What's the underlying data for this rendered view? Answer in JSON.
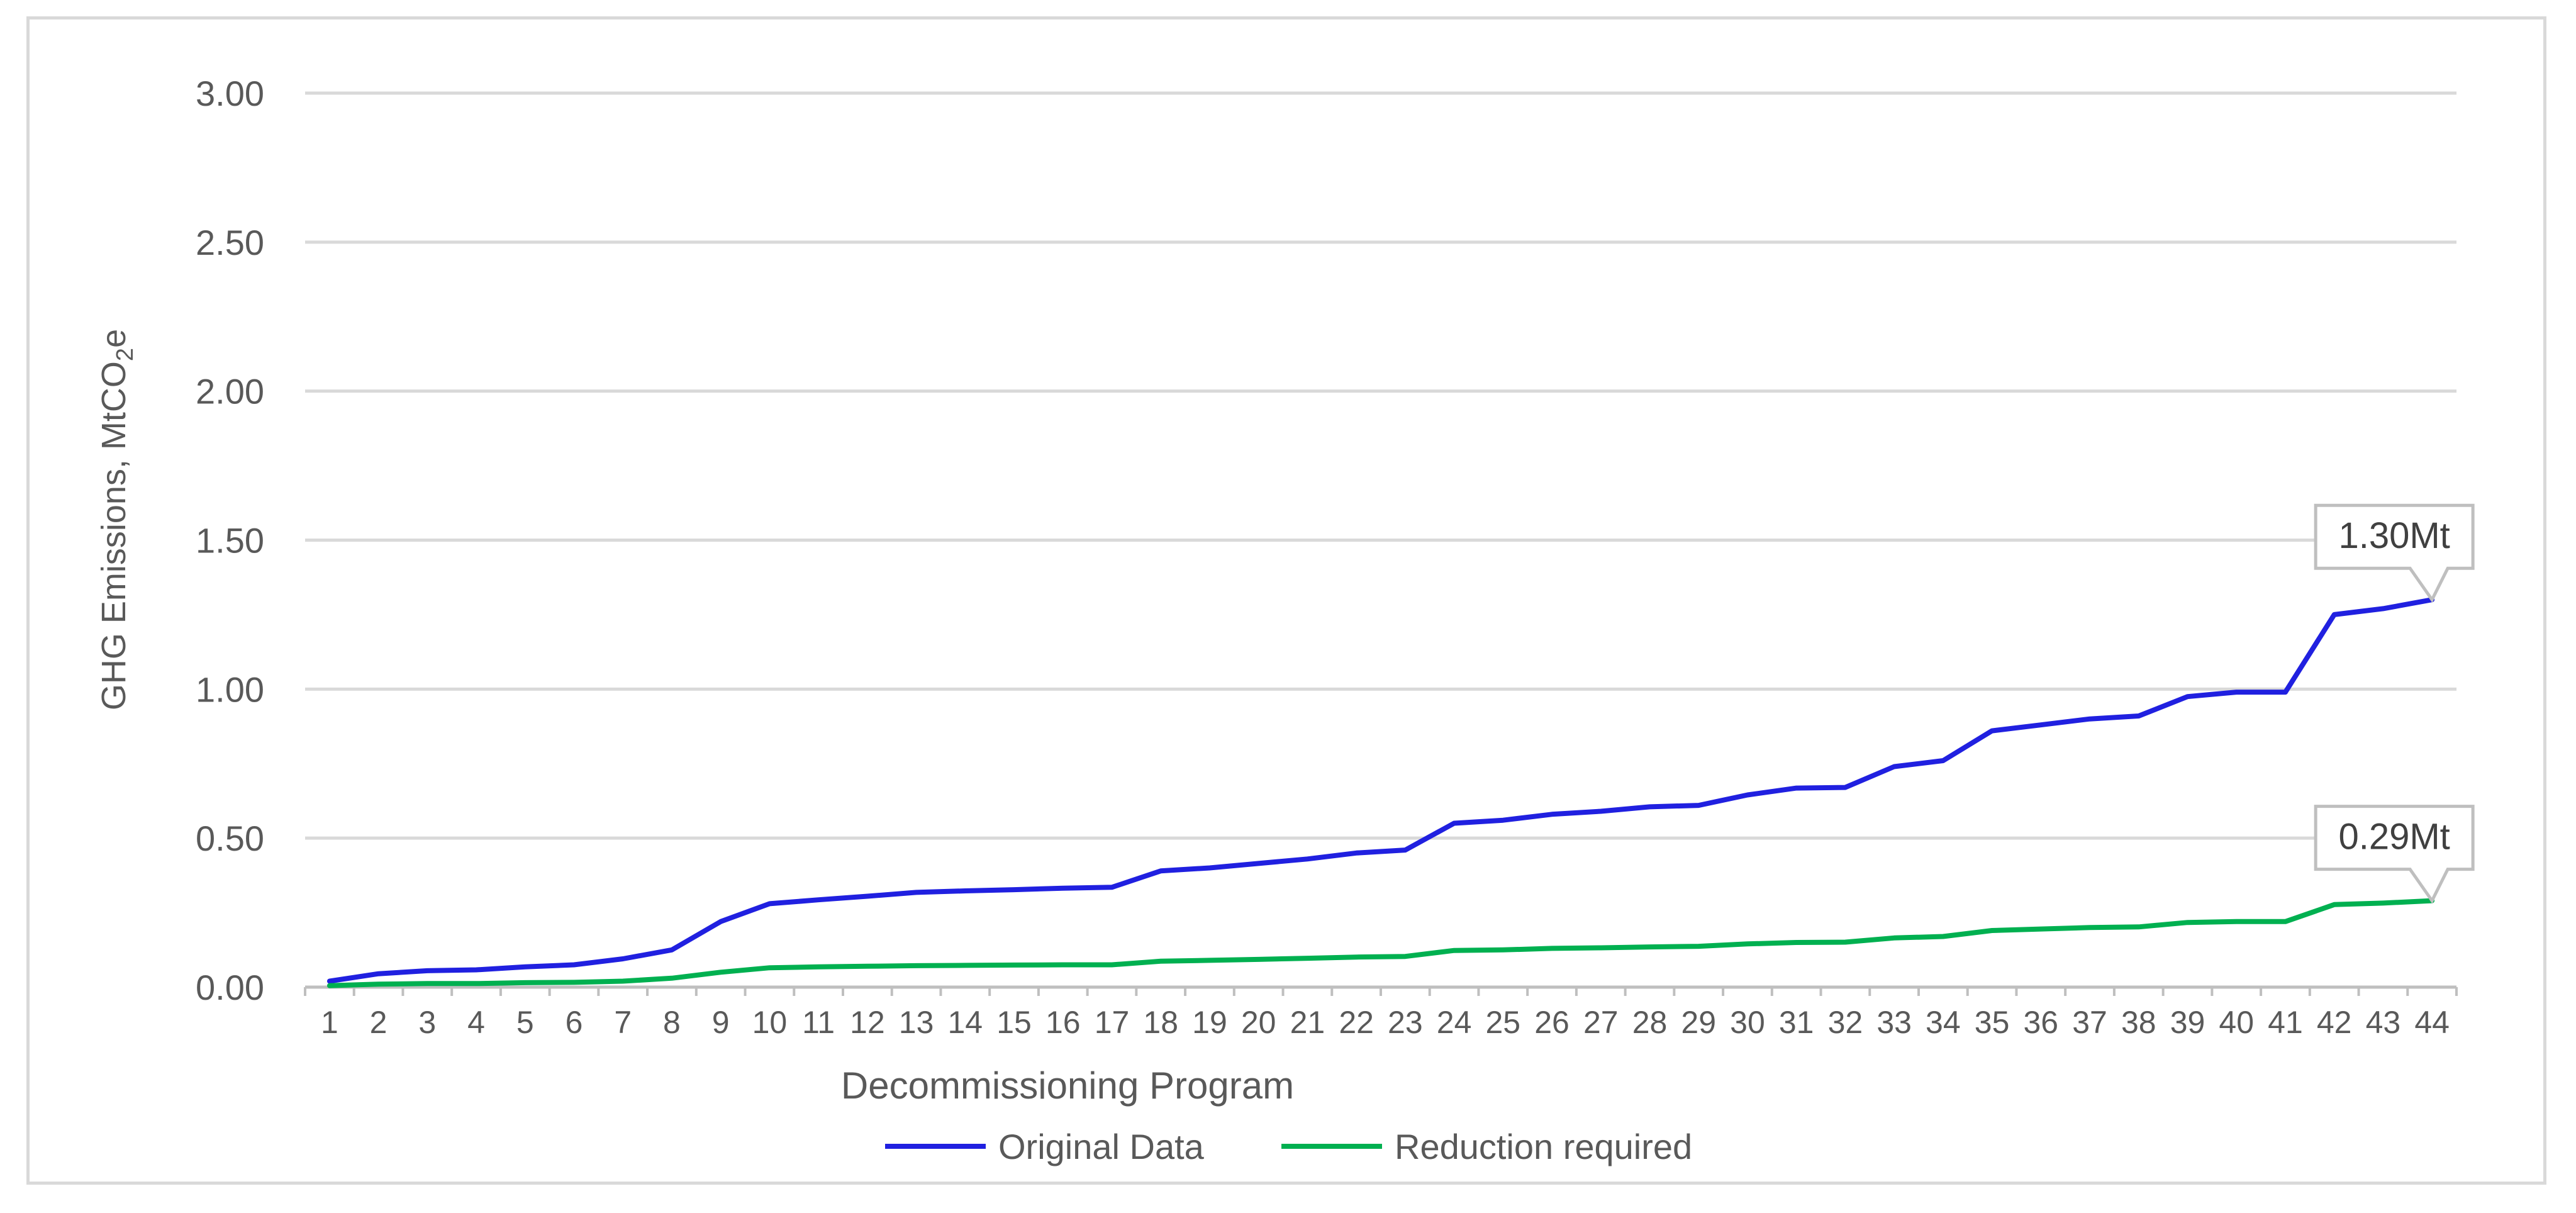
{
  "chart_data": {
    "type": "line",
    "title": "",
    "xlabel": "Decommissioning Program",
    "ylabel": {
      "main": "GHG Emissions, MtCO",
      "subscript": "2",
      "suffix": "e"
    },
    "ylim": [
      0,
      3
    ],
    "y_ticks": [
      "0.00",
      "0.50",
      "1.00",
      "1.50",
      "2.00",
      "2.50",
      "3.00"
    ],
    "grid": true,
    "legend_position": "bottom",
    "categories": [
      "1",
      "2",
      "3",
      "4",
      "5",
      "6",
      "7",
      "8",
      "9",
      "10",
      "11",
      "12",
      "13",
      "14",
      "15",
      "16",
      "17",
      "18",
      "19",
      "20",
      "21",
      "22",
      "23",
      "24",
      "25",
      "26",
      "27",
      "28",
      "29",
      "30",
      "31",
      "32",
      "33",
      "34",
      "35",
      "36",
      "37",
      "38",
      "39",
      "40",
      "41",
      "42",
      "43",
      "44"
    ],
    "series": [
      {
        "name": "Original Data",
        "color": "#2020e0",
        "values": [
          0.02,
          0.045,
          0.055,
          0.058,
          0.068,
          0.075,
          0.095,
          0.125,
          0.22,
          0.28,
          0.293,
          0.305,
          0.318,
          0.323,
          0.327,
          0.332,
          0.335,
          0.39,
          0.4,
          0.415,
          0.43,
          0.45,
          0.46,
          0.55,
          0.56,
          0.58,
          0.59,
          0.605,
          0.61,
          0.645,
          0.668,
          0.67,
          0.74,
          0.76,
          0.86,
          0.88,
          0.9,
          0.91,
          0.975,
          0.99,
          0.99,
          1.25,
          1.27,
          1.3
        ],
        "callout": "1.30Mt"
      },
      {
        "name": "Reduction required",
        "color": "#00b050",
        "values": [
          0.005,
          0.01,
          0.012,
          0.012,
          0.015,
          0.016,
          0.02,
          0.03,
          0.05,
          0.065,
          0.068,
          0.07,
          0.072,
          0.073,
          0.074,
          0.075,
          0.075,
          0.087,
          0.09,
          0.093,
          0.097,
          0.101,
          0.103,
          0.123,
          0.125,
          0.13,
          0.132,
          0.135,
          0.137,
          0.145,
          0.15,
          0.151,
          0.165,
          0.17,
          0.19,
          0.195,
          0.2,
          0.202,
          0.217,
          0.22,
          0.22,
          0.277,
          0.282,
          0.29
        ],
        "callout": "0.29Mt"
      }
    ]
  }
}
